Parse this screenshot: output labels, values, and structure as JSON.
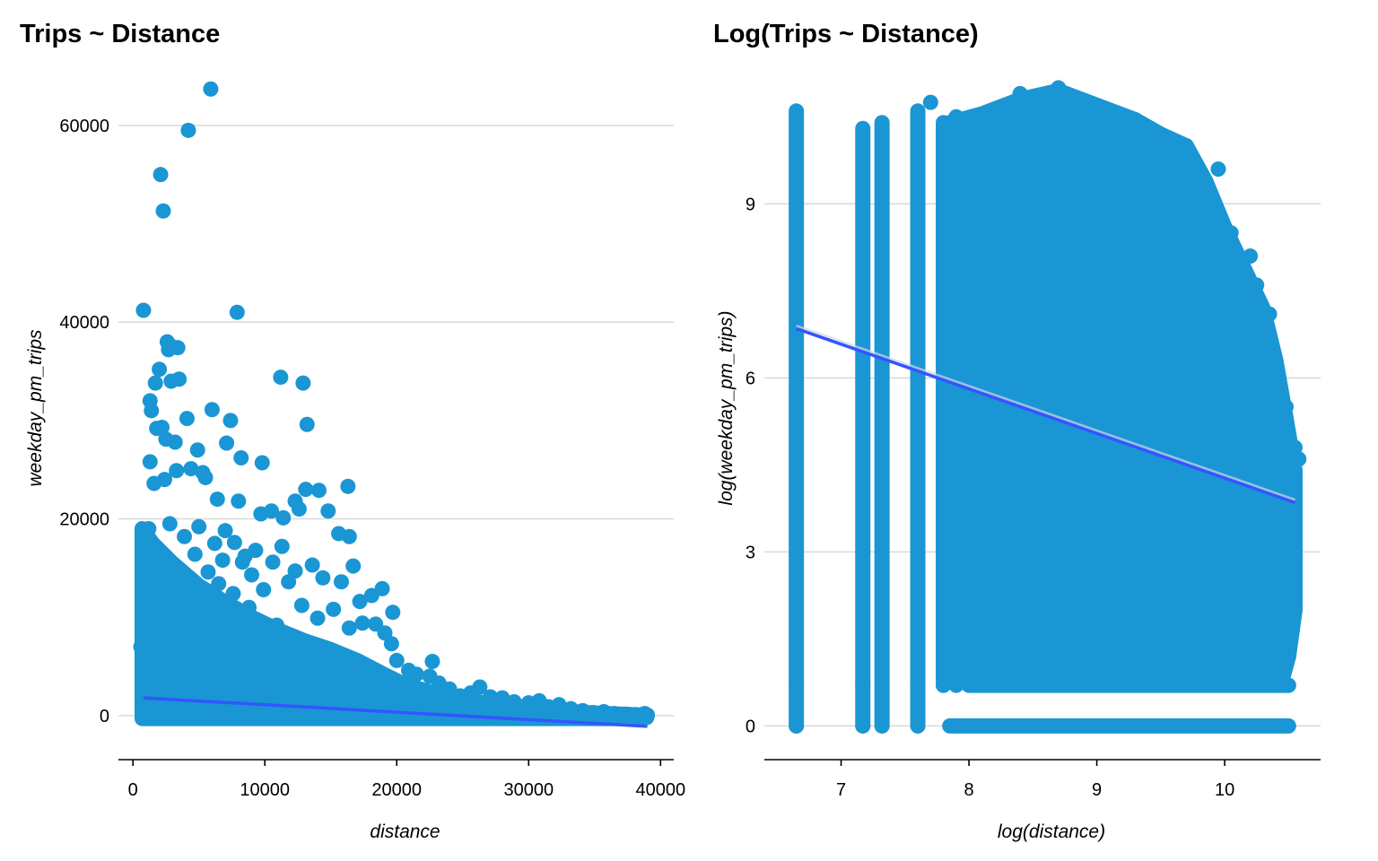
{
  "chart_data": [
    {
      "type": "scatter",
      "title": "Trips ~ Distance",
      "xlabel": "distance",
      "ylabel": "weekday_pm_trips",
      "xlim": [
        -1100,
        41000
      ],
      "ylim": [
        -4300,
        65000
      ],
      "x_ticks": [
        0,
        10000,
        20000,
        30000,
        40000
      ],
      "x_tick_labels": [
        "0",
        "10000",
        "20000",
        "30000",
        "40000"
      ],
      "y_ticks": [
        0,
        20000,
        40000,
        60000
      ],
      "y_tick_labels": [
        "0",
        "20000",
        "40000",
        "60000"
      ],
      "grid": "horizontal major",
      "point_color": "#1a96d4",
      "fit_line_color": "#3355ff",
      "fit_line": {
        "x": [
          800,
          39000
        ],
        "y": [
          1800,
          -1100
        ]
      },
      "points": [
        [
          800,
          41200
        ],
        [
          2100,
          55000
        ],
        [
          2300,
          51300
        ],
        [
          4200,
          59500
        ],
        [
          5900,
          63700
        ],
        [
          7900,
          41000
        ],
        [
          2600,
          38000
        ],
        [
          3000,
          37500
        ],
        [
          3400,
          37400
        ],
        [
          2700,
          37200
        ],
        [
          11200,
          34400
        ],
        [
          12900,
          33800
        ],
        [
          2000,
          35200
        ],
        [
          1700,
          33800
        ],
        [
          2900,
          34000
        ],
        [
          3500,
          34200
        ],
        [
          13200,
          29600
        ],
        [
          4100,
          30200
        ],
        [
          6000,
          31100
        ],
        [
          7400,
          30000
        ],
        [
          1300,
          32000
        ],
        [
          1400,
          31000
        ],
        [
          1800,
          29200
        ],
        [
          2200,
          29300
        ],
        [
          2500,
          28100
        ],
        [
          3200,
          27800
        ],
        [
          4900,
          27000
        ],
        [
          7100,
          27700
        ],
        [
          8200,
          26200
        ],
        [
          9800,
          25700
        ],
        [
          1300,
          25800
        ],
        [
          1600,
          23600
        ],
        [
          2400,
          24000
        ],
        [
          3300,
          24900
        ],
        [
          4400,
          25100
        ],
        [
          5300,
          24700
        ],
        [
          5500,
          24200
        ],
        [
          6400,
          22000
        ],
        [
          8000,
          21800
        ],
        [
          9700,
          20500
        ],
        [
          10500,
          20800
        ],
        [
          12300,
          21800
        ],
        [
          13100,
          23000
        ],
        [
          14100,
          22900
        ],
        [
          14800,
          20800
        ],
        [
          15600,
          18500
        ],
        [
          16300,
          23300
        ],
        [
          16400,
          18200
        ],
        [
          12600,
          21000
        ],
        [
          11400,
          20100
        ],
        [
          1200,
          19000
        ],
        [
          2800,
          19500
        ],
        [
          3900,
          18200
        ],
        [
          5000,
          19200
        ],
        [
          6200,
          17500
        ],
        [
          7000,
          18800
        ],
        [
          7700,
          17600
        ],
        [
          8500,
          16200
        ],
        [
          9300,
          16800
        ],
        [
          10600,
          15600
        ],
        [
          11300,
          17200
        ],
        [
          12300,
          14700
        ],
        [
          13600,
          15300
        ],
        [
          14400,
          14000
        ],
        [
          15800,
          13600
        ],
        [
          16700,
          15200
        ],
        [
          17200,
          11600
        ],
        [
          18100,
          12200
        ],
        [
          18900,
          12900
        ],
        [
          19700,
          10500
        ],
        [
          18400,
          9300
        ],
        [
          19100,
          8400
        ],
        [
          19600,
          7300
        ],
        [
          20000,
          5600
        ],
        [
          20900,
          4600
        ],
        [
          21500,
          4200
        ],
        [
          22500,
          4000
        ],
        [
          22700,
          5500
        ],
        [
          23200,
          3300
        ],
        [
          24000,
          2700
        ],
        [
          24800,
          2000
        ],
        [
          25600,
          2300
        ],
        [
          26300,
          2900
        ],
        [
          27100,
          1900
        ],
        [
          28000,
          1800
        ],
        [
          28900,
          1400
        ],
        [
          30000,
          1300
        ],
        [
          30800,
          1500
        ],
        [
          31500,
          900
        ],
        [
          32300,
          1100
        ],
        [
          33200,
          700
        ],
        [
          34100,
          500
        ],
        [
          34900,
          300
        ],
        [
          35700,
          400
        ],
        [
          36500,
          200
        ],
        [
          37400,
          150
        ],
        [
          38100,
          100
        ],
        [
          38800,
          200
        ],
        [
          39000,
          50
        ],
        [
          1000,
          12000
        ],
        [
          1500,
          9000
        ],
        [
          2000,
          10500
        ],
        [
          3100,
          11800
        ],
        [
          4300,
          12600
        ],
        [
          5100,
          10000
        ],
        [
          6500,
          13400
        ],
        [
          7600,
          12400
        ],
        [
          8800,
          11000
        ],
        [
          9900,
          12800
        ],
        [
          10900,
          9200
        ],
        [
          11800,
          13600
        ],
        [
          12800,
          11200
        ],
        [
          14000,
          9900
        ],
        [
          15200,
          10800
        ],
        [
          16400,
          8900
        ],
        [
          17400,
          9400
        ],
        [
          6800,
          15800
        ],
        [
          5700,
          14600
        ],
        [
          4700,
          16400
        ],
        [
          3600,
          14200
        ],
        [
          2600,
          15900
        ],
        [
          1700,
          16900
        ],
        [
          9000,
          14300
        ],
        [
          8300,
          15600
        ],
        [
          600,
          7000
        ],
        [
          2200,
          6500
        ],
        [
          4000,
          7600
        ],
        [
          6000,
          6900
        ],
        [
          8000,
          7800
        ],
        [
          10000,
          6500
        ],
        [
          12000,
          7300
        ],
        [
          14000,
          6100
        ],
        [
          16000,
          5600
        ],
        [
          18000,
          4700
        ]
      ],
      "dense_band": [
        [
          300,
          0,
          600
        ],
        [
          200,
          300,
          1200
        ],
        [
          100,
          500,
          1800
        ],
        [
          0,
          700,
          2600
        ],
        [
          -40,
          900,
          3600
        ],
        [
          -80,
          1100,
          4700
        ],
        [
          -120,
          1300,
          6000
        ],
        [
          -160,
          1500,
          7500
        ],
        [
          -170,
          1700,
          9300
        ],
        [
          -190,
          1900,
          11100
        ],
        [
          -200,
          2100,
          12600
        ],
        [
          -200,
          2200,
          13200
        ]
      ]
    },
    {
      "type": "scatter",
      "title": "Log(Trips ~ Distance)",
      "xlabel": "log(distance)",
      "ylabel": "log(weekday_pm_trips)",
      "xlim": [
        6.4,
        10.75
      ],
      "ylim": [
        -0.55,
        11.2
      ],
      "x_ticks": [
        7,
        8,
        9,
        10
      ],
      "x_tick_labels": [
        "7",
        "8",
        "9",
        "10"
      ],
      "y_ticks": [
        0,
        3,
        6,
        9
      ],
      "y_tick_labels": [
        "0",
        "3",
        "6",
        "9"
      ],
      "grid": "horizontal major",
      "point_color": "#1a96d4",
      "fit_line_color": "#3355ff",
      "fit_line": {
        "x": [
          6.65,
          10.55
        ],
        "y": [
          6.85,
          3.85
        ]
      },
      "columns": [
        [
          6.65,
          0,
          10.6
        ],
        [
          7.17,
          0,
          10.3
        ],
        [
          7.32,
          0,
          10.4
        ],
        [
          7.6,
          0,
          10.6
        ],
        [
          7.8,
          0.7,
          10.4
        ]
      ],
      "column_caps": [
        [
          7.7,
          10.75
        ]
      ],
      "cloud_polygon": [
        [
          7.85,
          0.8
        ],
        [
          7.85,
          10.4
        ],
        [
          8.1,
          10.55
        ],
        [
          8.4,
          10.8
        ],
        [
          8.7,
          10.95
        ],
        [
          9.0,
          10.7
        ],
        [
          9.3,
          10.45
        ],
        [
          9.5,
          10.2
        ],
        [
          9.7,
          10.0
        ],
        [
          9.85,
          9.4
        ],
        [
          10.0,
          8.6
        ],
        [
          10.15,
          7.9
        ],
        [
          10.3,
          7.2
        ],
        [
          10.4,
          6.3
        ],
        [
          10.48,
          5.3
        ],
        [
          10.55,
          4.4
        ],
        [
          10.55,
          2.0
        ],
        [
          10.5,
          1.2
        ],
        [
          10.45,
          0.8
        ],
        [
          9.4,
          0.8
        ],
        [
          8.6,
          0.8
        ]
      ],
      "bottom_rows": [
        [
          8.0,
          10.5,
          0.7
        ],
        [
          7.85,
          10.5,
          0
        ]
      ],
      "scatter_points": [
        [
          8.4,
          10.9
        ],
        [
          8.7,
          11.0
        ],
        [
          9.0,
          10.6
        ],
        [
          9.3,
          10.45
        ],
        [
          9.5,
          10.2
        ],
        [
          9.7,
          10.0
        ],
        [
          9.95,
          9.6
        ],
        [
          10.05,
          8.5
        ],
        [
          10.2,
          8.1
        ],
        [
          10.25,
          7.6
        ],
        [
          10.35,
          7.1
        ],
        [
          10.4,
          6.3
        ],
        [
          10.48,
          5.5
        ],
        [
          10.55,
          4.8
        ],
        [
          10.58,
          4.6
        ],
        [
          8.1,
          10.5
        ],
        [
          8.8,
          10.4
        ],
        [
          9.6,
          10.0
        ],
        [
          7.9,
          10.5
        ],
        [
          8.25,
          10.6
        ],
        [
          10.5,
          2.5
        ],
        [
          10.5,
          1.7
        ],
        [
          10.45,
          3.5
        ],
        [
          10.52,
          3.1
        ]
      ]
    }
  ]
}
